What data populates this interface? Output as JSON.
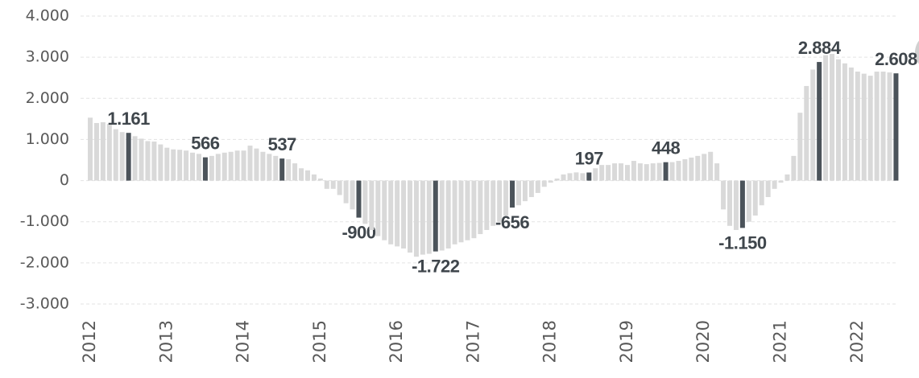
{
  "chart_data": {
    "type": "bar",
    "categories": [
      "2012",
      null,
      null,
      null,
      null,
      null,
      null,
      null,
      null,
      null,
      null,
      null,
      "2013",
      null,
      null,
      null,
      null,
      null,
      null,
      null,
      null,
      null,
      null,
      null,
      "2014",
      null,
      null,
      null,
      null,
      null,
      null,
      null,
      null,
      null,
      null,
      null,
      "2015",
      null,
      null,
      null,
      null,
      null,
      null,
      null,
      null,
      null,
      null,
      null,
      "2016",
      null,
      null,
      null,
      null,
      null,
      null,
      null,
      null,
      null,
      null,
      null,
      "2017",
      null,
      null,
      null,
      null,
      null,
      null,
      null,
      null,
      null,
      null,
      null,
      "2018",
      null,
      null,
      null,
      null,
      null,
      null,
      null,
      null,
      null,
      null,
      null,
      "2019",
      null,
      null,
      null,
      null,
      null,
      null,
      null,
      null,
      null,
      null,
      null,
      "2020",
      null,
      null,
      null,
      null,
      null,
      null,
      null,
      null,
      null,
      null,
      null,
      "2021",
      null,
      null,
      null,
      null,
      null,
      null,
      null,
      null,
      null,
      null,
      null,
      "2022",
      null,
      null,
      null,
      null,
      null,
      null
    ],
    "values": [
      1530,
      1400,
      1420,
      1380,
      1250,
      1180,
      1161,
      1080,
      1020,
      960,
      950,
      880,
      800,
      760,
      750,
      730,
      680,
      650,
      566,
      600,
      650,
      680,
      700,
      730,
      730,
      850,
      780,
      700,
      650,
      600,
      537,
      520,
      420,
      300,
      250,
      150,
      50,
      -200,
      -200,
      -350,
      -550,
      -700,
      -900,
      -1050,
      -1200,
      -1350,
      -1450,
      -1550,
      -1600,
      -1650,
      -1750,
      -1850,
      -1800,
      -1780,
      -1722,
      -1700,
      -1650,
      -1550,
      -1500,
      -1450,
      -1400,
      -1300,
      -1200,
      -1100,
      -1000,
      -850,
      -656,
      -600,
      -500,
      -400,
      -300,
      -150,
      -50,
      50,
      150,
      180,
      200,
      180,
      197,
      300,
      380,
      380,
      420,
      420,
      380,
      480,
      420,
      400,
      420,
      430,
      448,
      450,
      480,
      520,
      560,
      600,
      650,
      700,
      420,
      -700,
      -1100,
      -1200,
      -1150,
      -1000,
      -850,
      -600,
      -400,
      -200,
      -50,
      150,
      600,
      1650,
      2300,
      2700,
      2884,
      3050,
      3080,
      2950,
      2850,
      2750,
      2650,
      2600,
      2550,
      2650,
      2650,
      2630,
      2608
    ],
    "value_labels": [
      null,
      null,
      null,
      null,
      null,
      null,
      "1.161",
      null,
      null,
      null,
      null,
      null,
      null,
      null,
      null,
      null,
      null,
      null,
      "566",
      null,
      null,
      null,
      null,
      null,
      null,
      null,
      null,
      null,
      null,
      null,
      "537",
      null,
      null,
      null,
      null,
      null,
      null,
      null,
      null,
      null,
      null,
      null,
      "-900",
      null,
      null,
      null,
      null,
      null,
      null,
      null,
      null,
      null,
      null,
      null,
      "-1.722",
      null,
      null,
      null,
      null,
      null,
      null,
      null,
      null,
      null,
      null,
      null,
      "-656",
      null,
      null,
      null,
      null,
      null,
      null,
      null,
      null,
      null,
      null,
      null,
      "197",
      null,
      null,
      null,
      null,
      null,
      null,
      null,
      null,
      null,
      null,
      null,
      "448",
      null,
      null,
      null,
      null,
      null,
      null,
      null,
      null,
      null,
      null,
      null,
      "-1.150",
      null,
      null,
      null,
      null,
      null,
      null,
      null,
      null,
      null,
      null,
      null,
      "2.884",
      null,
      null,
      null,
      null,
      null,
      null,
      null,
      null,
      null,
      null,
      null,
      "2.608"
    ],
    "color": "#d9d9d9",
    "highlight_color": "#4b535a",
    "ylim": [
      -3000,
      4000
    ],
    "yticks": [
      {
        "value": -3000,
        "label": "-3.000"
      },
      {
        "value": -2000,
        "label": "-2.000"
      },
      {
        "value": -1000,
        "label": "-1.000"
      },
      0,
      {
        "value": 1000,
        "label": "1.000"
      },
      {
        "value": 2000,
        "label": "2.000"
      },
      {
        "value": 3000,
        "label": "3.000"
      },
      {
        "value": 4000,
        "label": "4.000"
      }
    ],
    "grid": true
  }
}
